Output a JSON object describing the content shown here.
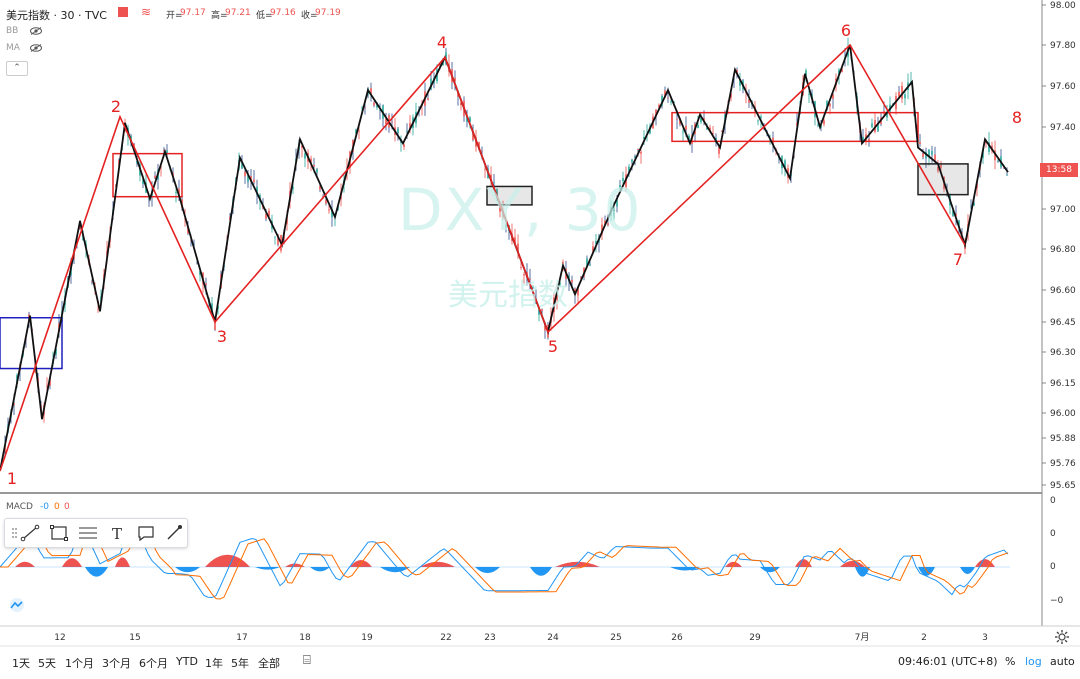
{
  "header": {
    "symbol": "美元指数 · 30 · TVC",
    "open_label": "开=",
    "open_value": "97.17",
    "high_label": "高=",
    "high_value": "97.21",
    "low_label": "低=",
    "low_value": "97.16",
    "close_label": "收=",
    "close_value": "97.19",
    "bb_label": "BB",
    "ma_label": "MA"
  },
  "watermark": {
    "symbol": "DXY, 30",
    "name": "美元指数"
  },
  "price_tag": "13:58",
  "macd_label": "MACD",
  "macd_values": [
    "-0",
    "0",
    "0"
  ],
  "bottom": {
    "timeframes": [
      "1天",
      "5天",
      "1个月",
      "3个月",
      "6个月",
      "YTD",
      "1年",
      "5年",
      "全部"
    ],
    "clock": "09:46:01 (UTC+8)",
    "pct": "%",
    "log": "log",
    "auto": "auto"
  },
  "colors": {
    "up": "#26a69a",
    "down": "#ef5350",
    "wave": "#e52222",
    "zigzag": "#111111",
    "box_blue": "#1f1fbf",
    "macd_line": "#2196f3",
    "signal_line": "#ff6d00"
  },
  "chart_data": [
    {
      "type": "line",
      "title": "美元指数 · 30 · TVC",
      "ylim": [
        95.6,
        98.0
      ],
      "y_ticks": [
        "98.00",
        "97.80",
        "97.60",
        "97.40",
        "97.20",
        "97.00",
        "96.80",
        "96.60",
        "96.45",
        "96.30",
        "96.15",
        "96.00",
        "95.88",
        "95.76",
        "95.65"
      ],
      "x_ticks": [
        "12",
        "15",
        "17",
        "18",
        "19",
        "22",
        "23",
        "24",
        "25",
        "26",
        "29",
        "7月",
        "2",
        "3"
      ],
      "wave_labels": [
        "1",
        "2",
        "3",
        "4",
        "5",
        "6",
        "7",
        "8"
      ],
      "series": [
        {
          "points": [
            [
              0,
              95.72
            ],
            [
              120,
              97.45
            ],
            [
              215,
              96.45
            ],
            [
              445,
              97.74
            ],
            [
              548,
              96.4
            ],
            [
              850,
              97.8
            ],
            [
              965,
              96.82
            ]
          ]
        },
        {
          "points": [
            [
              0,
              95.72
            ],
            [
              30,
              96.48
            ],
            [
              42,
              95.97
            ],
            [
              80,
              96.94
            ],
            [
              100,
              96.5
            ],
            [
              125,
              97.42
            ],
            [
              150,
              97.05
            ],
            [
              165,
              97.28
            ],
            [
              180,
              97.05
            ],
            [
              215,
              96.45
            ],
            [
              240,
              97.25
            ],
            [
              282,
              96.82
            ],
            [
              300,
              97.34
            ],
            [
              335,
              96.96
            ],
            [
              368,
              97.58
            ],
            [
              403,
              97.32
            ],
            [
              445,
              97.74
            ],
            [
              510,
              96.89
            ],
            [
              548,
              96.4
            ],
            [
              563,
              96.72
            ],
            [
              575,
              96.58
            ],
            [
              612,
              97.0
            ],
            [
              668,
              97.58
            ],
            [
              690,
              97.32
            ],
            [
              700,
              97.46
            ],
            [
              720,
              97.3
            ],
            [
              735,
              97.68
            ],
            [
              790,
              97.15
            ],
            [
              805,
              97.66
            ],
            [
              820,
              97.4
            ],
            [
              850,
              97.8
            ],
            [
              862,
              97.32
            ],
            [
              912,
              97.62
            ],
            [
              918,
              97.3
            ],
            [
              938,
              97.22
            ],
            [
              965,
              96.82
            ],
            [
              985,
              97.34
            ],
            [
              1008,
              97.18
            ]
          ]
        }
      ],
      "boxes": [
        {
          "x": [
            0,
            62
          ],
          "y": [
            96.22,
            96.47
          ],
          "color": "blue"
        },
        {
          "x": [
            113,
            182
          ],
          "y": [
            97.06,
            97.27
          ],
          "color": "red"
        },
        {
          "x": [
            487,
            532
          ],
          "y": [
            97.02,
            97.11
          ],
          "color": "black"
        },
        {
          "x": [
            672,
            918
          ],
          "y": [
            97.33,
            97.47
          ],
          "color": "red"
        },
        {
          "x": [
            918,
            968
          ],
          "y": [
            97.07,
            97.22
          ],
          "color": "black"
        }
      ]
    },
    {
      "type": "area",
      "title": "MACD",
      "ylim": [
        -1.0,
        1.0
      ],
      "y_ticks": [
        "0",
        "0",
        "0",
        "−0"
      ],
      "hist_up": [
        [
          15,
          35,
          0.3
        ],
        [
          62,
          82,
          0.5
        ],
        [
          115,
          130,
          0.55
        ],
        [
          205,
          250,
          0.7
        ],
        [
          285,
          305,
          0.2
        ],
        [
          350,
          372,
          0.4
        ],
        [
          420,
          455,
          0.3
        ],
        [
          555,
          600,
          0.3
        ],
        [
          725,
          742,
          0.3
        ],
        [
          795,
          812,
          0.45
        ],
        [
          840,
          865,
          0.35
        ],
        [
          975,
          995,
          0.45
        ]
      ],
      "hist_down": [
        [
          85,
          108,
          0.55
        ],
        [
          175,
          200,
          0.3
        ],
        [
          255,
          280,
          0.15
        ],
        [
          310,
          330,
          0.25
        ],
        [
          380,
          410,
          0.3
        ],
        [
          475,
          500,
          0.35
        ],
        [
          530,
          552,
          0.5
        ],
        [
          670,
          700,
          0.2
        ],
        [
          760,
          780,
          0.3
        ],
        [
          855,
          870,
          0.55
        ],
        [
          918,
          935,
          0.5
        ],
        [
          960,
          975,
          0.4
        ]
      ]
    }
  ]
}
